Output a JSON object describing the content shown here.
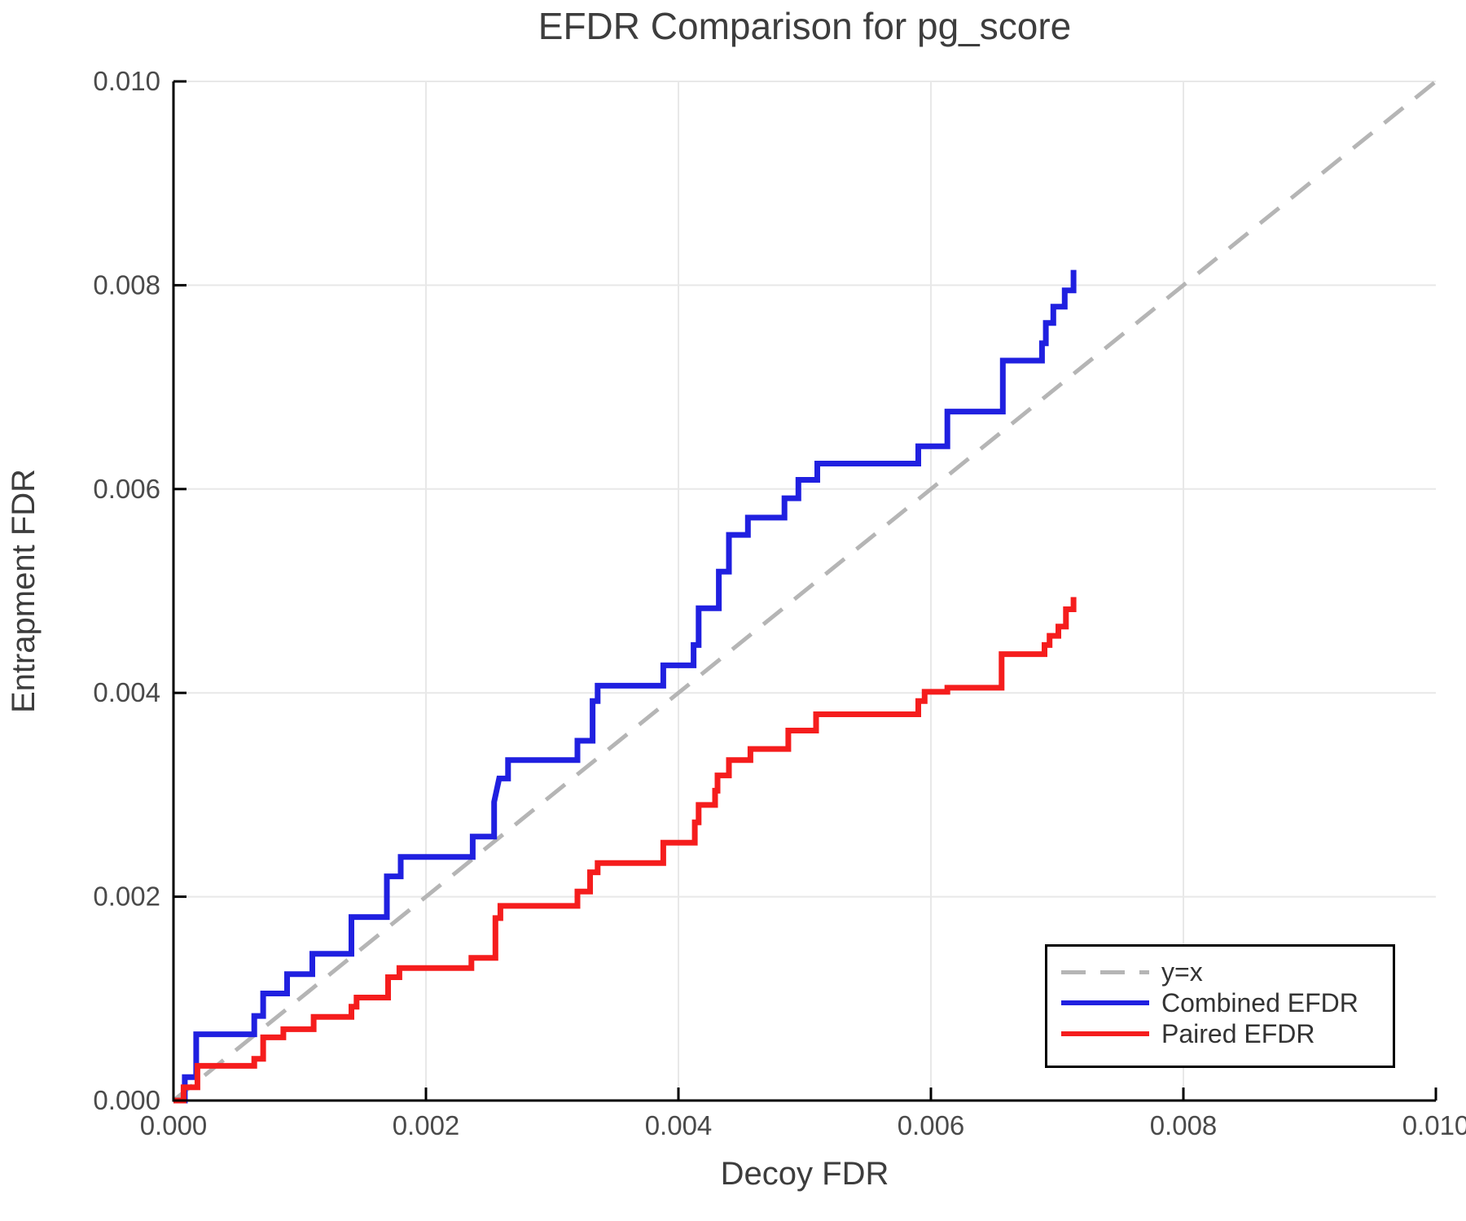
{
  "figure": {
    "title": "EFDR Comparison for pg_score",
    "xlabel": "Decoy FDR",
    "ylabel": "Entrapment FDR"
  },
  "legend": {
    "position": "lower right",
    "items": [
      {
        "label": "y=x",
        "style": "dashed",
        "color": "#b5b5b5"
      },
      {
        "label": "Combined EFDR",
        "style": "solid",
        "color": "#2020e0"
      },
      {
        "label": "Paired EFDR",
        "style": "solid",
        "color": "#f51d1d"
      }
    ]
  },
  "colors": {
    "background": "#ffffff",
    "grid": "#e8e8e8",
    "spine": "#000000",
    "tick_label": "#4a4a4a",
    "axis_label": "#3d3d3d",
    "title": "#3d3d3d",
    "identity": "#b5b5b5",
    "combined": "#2020e0",
    "paired": "#f51d1d"
  },
  "chart_data": {
    "type": "line",
    "title": "EFDR Comparison for pg_score",
    "xlabel": "Decoy FDR",
    "ylabel": "Entrapment FDR",
    "xlim": [
      0.0,
      0.01
    ],
    "ylim": [
      0.0,
      0.01
    ],
    "grid": true,
    "legend_position": "lower right",
    "xticks": {
      "values": [
        0.0,
        0.002,
        0.004,
        0.006,
        0.008,
        0.01
      ],
      "labels": [
        "0.000",
        "0.002",
        "0.004",
        "0.006",
        "0.008",
        "0.010"
      ]
    },
    "yticks": {
      "values": [
        0.0,
        0.002,
        0.004,
        0.006,
        0.008,
        0.01
      ],
      "labels": [
        "0.000",
        "0.002",
        "0.004",
        "0.006",
        "0.008",
        "0.010"
      ]
    },
    "series": [
      {
        "name": "y=x",
        "color": "#b5b5b5",
        "style": "dashed",
        "width": 5,
        "points": [
          [
            0.0,
            0.0
          ],
          [
            0.01,
            0.01
          ]
        ]
      },
      {
        "name": "Combined EFDR",
        "color": "#2020e0",
        "style": "solid",
        "width": 7,
        "points": [
          [
            0.0,
            0.0
          ],
          [
            9e-05,
            0.0
          ],
          [
            9e-05,
            0.00023
          ],
          [
            0.00018,
            0.00023
          ],
          [
            0.00018,
            0.00065
          ],
          [
            0.00064,
            0.00065
          ],
          [
            0.00064,
            0.00083
          ],
          [
            0.00071,
            0.00083
          ],
          [
            0.00071,
            0.00105
          ],
          [
            0.0009,
            0.00105
          ],
          [
            0.0009,
            0.00124
          ],
          [
            0.0011,
            0.00124
          ],
          [
            0.0011,
            0.00144
          ],
          [
            0.00141,
            0.00144
          ],
          [
            0.00141,
            0.0018
          ],
          [
            0.00169,
            0.0018
          ],
          [
            0.00169,
            0.0022
          ],
          [
            0.0018,
            0.0022
          ],
          [
            0.0018,
            0.00239
          ],
          [
            0.00237,
            0.00239
          ],
          [
            0.00237,
            0.00259
          ],
          [
            0.00254,
            0.00259
          ],
          [
            0.00254,
            0.00293
          ],
          [
            0.00258,
            0.00316
          ],
          [
            0.00265,
            0.00316
          ],
          [
            0.00265,
            0.00334
          ],
          [
            0.0032,
            0.00334
          ],
          [
            0.0032,
            0.00353
          ],
          [
            0.00332,
            0.00353
          ],
          [
            0.00332,
            0.00392
          ],
          [
            0.00336,
            0.00392
          ],
          [
            0.00336,
            0.00407
          ],
          [
            0.00388,
            0.00407
          ],
          [
            0.00388,
            0.00427
          ],
          [
            0.00412,
            0.00427
          ],
          [
            0.00412,
            0.00447
          ],
          [
            0.00416,
            0.00447
          ],
          [
            0.00416,
            0.00483
          ],
          [
            0.00432,
            0.00483
          ],
          [
            0.00432,
            0.00519
          ],
          [
            0.0044,
            0.00519
          ],
          [
            0.0044,
            0.00555
          ],
          [
            0.00455,
            0.00555
          ],
          [
            0.00455,
            0.00572
          ],
          [
            0.00484,
            0.00572
          ],
          [
            0.00484,
            0.00591
          ],
          [
            0.00495,
            0.00591
          ],
          [
            0.00495,
            0.00609
          ],
          [
            0.0051,
            0.00609
          ],
          [
            0.0051,
            0.00625
          ],
          [
            0.0059,
            0.00625
          ],
          [
            0.0059,
            0.00642
          ],
          [
            0.00613,
            0.00642
          ],
          [
            0.00613,
            0.00676
          ],
          [
            0.00657,
            0.00676
          ],
          [
            0.00657,
            0.00726
          ],
          [
            0.00688,
            0.00726
          ],
          [
            0.00688,
            0.00743
          ],
          [
            0.00691,
            0.00743
          ],
          [
            0.00691,
            0.00763
          ],
          [
            0.00697,
            0.00763
          ],
          [
            0.00697,
            0.00779
          ],
          [
            0.00706,
            0.00779
          ],
          [
            0.00706,
            0.00795
          ],
          [
            0.00713,
            0.00795
          ],
          [
            0.00713,
            0.00815
          ]
        ]
      },
      {
        "name": "Paired EFDR",
        "color": "#f51d1d",
        "style": "solid",
        "width": 7,
        "points": [
          [
            0.0,
            0.0
          ],
          [
            8e-05,
            0.0
          ],
          [
            8e-05,
            0.00013
          ],
          [
            0.00019,
            0.00013
          ],
          [
            0.00019,
            0.00034
          ],
          [
            0.00064,
            0.00034
          ],
          [
            0.00064,
            0.00041
          ],
          [
            0.00071,
            0.00041
          ],
          [
            0.00071,
            0.00062
          ],
          [
            0.00087,
            0.00062
          ],
          [
            0.00087,
            0.0007
          ],
          [
            0.00111,
            0.0007
          ],
          [
            0.00111,
            0.00082
          ],
          [
            0.00141,
            0.00082
          ],
          [
            0.00141,
            0.00092
          ],
          [
            0.00145,
            0.00092
          ],
          [
            0.00145,
            0.00101
          ],
          [
            0.0017,
            0.00101
          ],
          [
            0.0017,
            0.00121
          ],
          [
            0.00179,
            0.00121
          ],
          [
            0.00179,
            0.0013
          ],
          [
            0.00236,
            0.0013
          ],
          [
            0.00236,
            0.0014
          ],
          [
            0.00255,
            0.0014
          ],
          [
            0.00255,
            0.00179
          ],
          [
            0.00259,
            0.00179
          ],
          [
            0.00259,
            0.00191
          ],
          [
            0.0032,
            0.00191
          ],
          [
            0.0032,
            0.00205
          ],
          [
            0.0033,
            0.00205
          ],
          [
            0.0033,
            0.00224
          ],
          [
            0.00336,
            0.00224
          ],
          [
            0.00336,
            0.00233
          ],
          [
            0.00388,
            0.00233
          ],
          [
            0.00388,
            0.00253
          ],
          [
            0.00413,
            0.00253
          ],
          [
            0.00413,
            0.00273
          ],
          [
            0.00416,
            0.00273
          ],
          [
            0.00416,
            0.0029
          ],
          [
            0.00429,
            0.0029
          ],
          [
            0.00429,
            0.00304
          ],
          [
            0.00431,
            0.00304
          ],
          [
            0.00431,
            0.00319
          ],
          [
            0.0044,
            0.00319
          ],
          [
            0.0044,
            0.00334
          ],
          [
            0.00457,
            0.00334
          ],
          [
            0.00457,
            0.00345
          ],
          [
            0.00487,
            0.00345
          ],
          [
            0.00487,
            0.00363
          ],
          [
            0.00509,
            0.00363
          ],
          [
            0.00509,
            0.00379
          ],
          [
            0.0059,
            0.00379
          ],
          [
            0.0059,
            0.00392
          ],
          [
            0.00595,
            0.00392
          ],
          [
            0.00595,
            0.00401
          ],
          [
            0.00613,
            0.00401
          ],
          [
            0.00613,
            0.00405
          ],
          [
            0.00656,
            0.00405
          ],
          [
            0.00656,
            0.00438
          ],
          [
            0.0069,
            0.00438
          ],
          [
            0.0069,
            0.00447
          ],
          [
            0.00694,
            0.00447
          ],
          [
            0.00694,
            0.00456
          ],
          [
            0.00701,
            0.00456
          ],
          [
            0.00701,
            0.00465
          ],
          [
            0.00707,
            0.00465
          ],
          [
            0.00707,
            0.00482
          ],
          [
            0.00713,
            0.00482
          ],
          [
            0.00713,
            0.00494
          ]
        ]
      }
    ]
  }
}
